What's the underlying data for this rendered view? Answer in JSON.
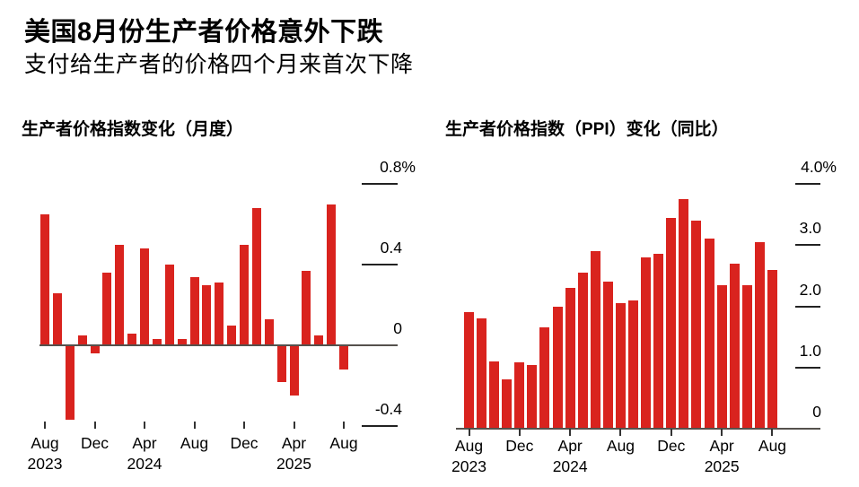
{
  "header": {
    "title": "美国8月份生产者价格意外下跌",
    "subtitle": "支付给生产者的价格四个月来首次下降"
  },
  "colors": {
    "bar": "#d9231e",
    "axis": "#55514d",
    "tick_line": "#222222",
    "tick_mark": "#333333",
    "text": "#000000",
    "background": "#ffffff"
  },
  "chart_data": [
    {
      "type": "bar",
      "title": "生产者价格指数变化（月度）",
      "unit": "%",
      "categories": [
        "Aug 2023",
        "Sep 2023",
        "Oct 2023",
        "Nov 2023",
        "Dec 2023",
        "Jan 2024",
        "Feb 2024",
        "Mar 2024",
        "Apr 2024",
        "May 2024",
        "Jun 2024",
        "Jul 2024",
        "Aug 2024",
        "Sep 2024",
        "Oct 2024",
        "Nov 2024",
        "Dec 2024",
        "Jan 2025",
        "Feb 2025",
        "Mar 2025",
        "Apr 2025",
        "May 2025",
        "Jun 2025",
        "Jul 2025",
        "Aug 2025"
      ],
      "values": [
        0.65,
        0.26,
        -0.37,
        0.05,
        -0.04,
        0.36,
        0.5,
        0.06,
        0.48,
        0.03,
        0.4,
        0.03,
        0.34,
        0.3,
        0.31,
        0.1,
        0.5,
        0.68,
        0.13,
        -0.18,
        -0.25,
        0.37,
        0.05,
        0.7,
        -0.12
      ],
      "ylim": [
        -0.47,
        0.8
      ],
      "grid": false,
      "legend": null,
      "yticks": [
        {
          "label": "0.8%",
          "value": 0.8
        },
        {
          "label": "0.4",
          "value": 0.4
        },
        {
          "label": "0",
          "value": 0
        },
        {
          "label": "-0.4",
          "value": -0.4
        }
      ],
      "xticks": [
        {
          "index": 0,
          "month": "Aug",
          "year": "2023"
        },
        {
          "index": 4,
          "month": "Dec",
          "year": ""
        },
        {
          "index": 8,
          "month": "Apr",
          "year": "2024"
        },
        {
          "index": 12,
          "month": "Aug",
          "year": ""
        },
        {
          "index": 16,
          "month": "Dec",
          "year": ""
        },
        {
          "index": 20,
          "month": "Apr",
          "year": "2025"
        },
        {
          "index": 24,
          "month": "Aug",
          "year": ""
        }
      ]
    },
    {
      "type": "bar",
      "title": "生产者价格指数（PPI）变化（同比）",
      "unit": "%",
      "categories": [
        "Aug 2023",
        "Sep 2023",
        "Oct 2023",
        "Nov 2023",
        "Dec 2023",
        "Jan 2024",
        "Feb 2024",
        "Mar 2024",
        "Apr 2024",
        "May 2024",
        "Jun 2024",
        "Jul 2024",
        "Aug 2024",
        "Sep 2024",
        "Oct 2024",
        "Nov 2024",
        "Dec 2024",
        "Jan 2025",
        "Feb 2025",
        "Mar 2025",
        "Apr 2025",
        "May 2025",
        "Jun 2025",
        "Jul 2025",
        "Aug 2025"
      ],
      "values": [
        1.9,
        1.8,
        1.1,
        0.8,
        1.08,
        1.04,
        1.65,
        2.0,
        2.3,
        2.55,
        2.9,
        2.4,
        2.05,
        2.1,
        2.8,
        2.85,
        3.45,
        3.75,
        3.4,
        3.1,
        2.35,
        2.7,
        2.35,
        3.05,
        2.6
      ],
      "ylim": [
        0,
        4.0
      ],
      "grid": false,
      "legend": null,
      "yticks": [
        {
          "label": "4.0%",
          "value": 4.0
        },
        {
          "label": "3.0",
          "value": 3.0
        },
        {
          "label": "2.0",
          "value": 2.0
        },
        {
          "label": "1.0",
          "value": 1.0
        },
        {
          "label": "0",
          "value": 0
        }
      ],
      "xticks": [
        {
          "index": 0,
          "month": "Aug",
          "year": "2023"
        },
        {
          "index": 4,
          "month": "Dec",
          "year": ""
        },
        {
          "index": 8,
          "month": "Apr",
          "year": "2024"
        },
        {
          "index": 12,
          "month": "Aug",
          "year": ""
        },
        {
          "index": 16,
          "month": "Dec",
          "year": ""
        },
        {
          "index": 20,
          "month": "Apr",
          "year": "2025"
        },
        {
          "index": 24,
          "month": "Aug",
          "year": ""
        }
      ]
    }
  ]
}
